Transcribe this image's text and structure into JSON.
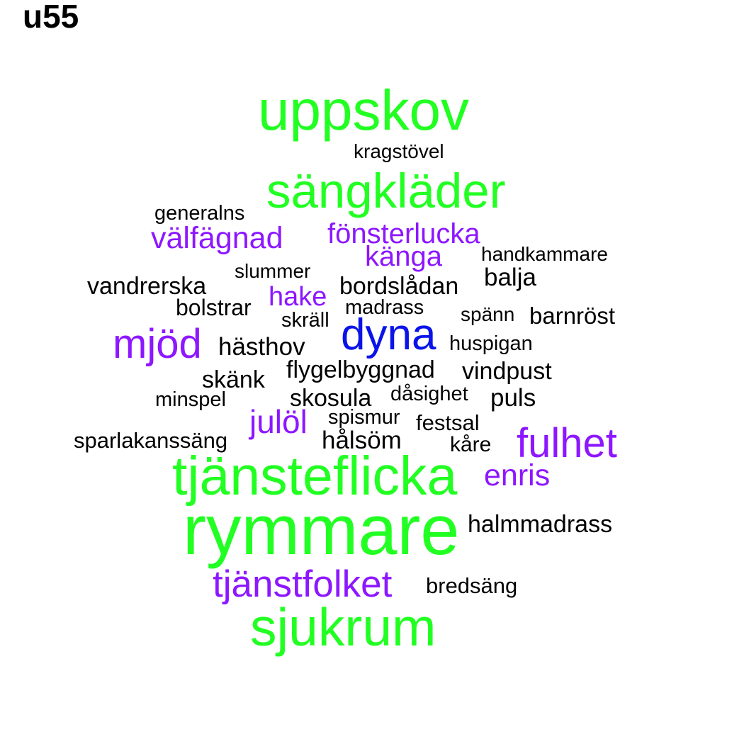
{
  "title": "u55",
  "colors": {
    "green": "#22ff22",
    "purple": "#8d17ff",
    "blue": "#0a14e8",
    "black": "#000000"
  },
  "words": [
    {
      "text": "uppskov",
      "color": "green"
    },
    {
      "text": "kragstövel",
      "color": "black"
    },
    {
      "text": "sängkläder",
      "color": "green"
    },
    {
      "text": "generalns",
      "color": "black"
    },
    {
      "text": "välfägnad",
      "color": "purple"
    },
    {
      "text": "fönsterlucka",
      "color": "purple"
    },
    {
      "text": "känga",
      "color": "purple"
    },
    {
      "text": "handkammare",
      "color": "black"
    },
    {
      "text": "slummer",
      "color": "black"
    },
    {
      "text": "balja",
      "color": "black"
    },
    {
      "text": "vandrerska",
      "color": "black"
    },
    {
      "text": "hake",
      "color": "purple"
    },
    {
      "text": "bordslådan",
      "color": "black"
    },
    {
      "text": "bolstrar",
      "color": "black"
    },
    {
      "text": "madrass",
      "color": "black"
    },
    {
      "text": "spänn",
      "color": "black"
    },
    {
      "text": "barnröst",
      "color": "black"
    },
    {
      "text": "skräll",
      "color": "black"
    },
    {
      "text": "dyna",
      "color": "blue"
    },
    {
      "text": "mjöd",
      "color": "purple"
    },
    {
      "text": "hästhov",
      "color": "black"
    },
    {
      "text": "huspigan",
      "color": "black"
    },
    {
      "text": "flygelbyggnad",
      "color": "black"
    },
    {
      "text": "vindpust",
      "color": "black"
    },
    {
      "text": "skänk",
      "color": "black"
    },
    {
      "text": "skosula",
      "color": "black"
    },
    {
      "text": "dåsighet",
      "color": "black"
    },
    {
      "text": "puls",
      "color": "black"
    },
    {
      "text": "minspel",
      "color": "black"
    },
    {
      "text": "julöl",
      "color": "purple"
    },
    {
      "text": "spismur",
      "color": "black"
    },
    {
      "text": "festsal",
      "color": "black"
    },
    {
      "text": "sparlakanssäng",
      "color": "black"
    },
    {
      "text": "hålsöm",
      "color": "black"
    },
    {
      "text": "kåre",
      "color": "black"
    },
    {
      "text": "fulhet",
      "color": "purple"
    },
    {
      "text": "tjänsteflicka",
      "color": "green"
    },
    {
      "text": "enris",
      "color": "purple"
    },
    {
      "text": "rymmare",
      "color": "green"
    },
    {
      "text": "halmmadrass",
      "color": "black"
    },
    {
      "text": "tjänstfolket",
      "color": "purple"
    },
    {
      "text": "bredsäng",
      "color": "black"
    },
    {
      "text": "sjukrum",
      "color": "green"
    }
  ]
}
